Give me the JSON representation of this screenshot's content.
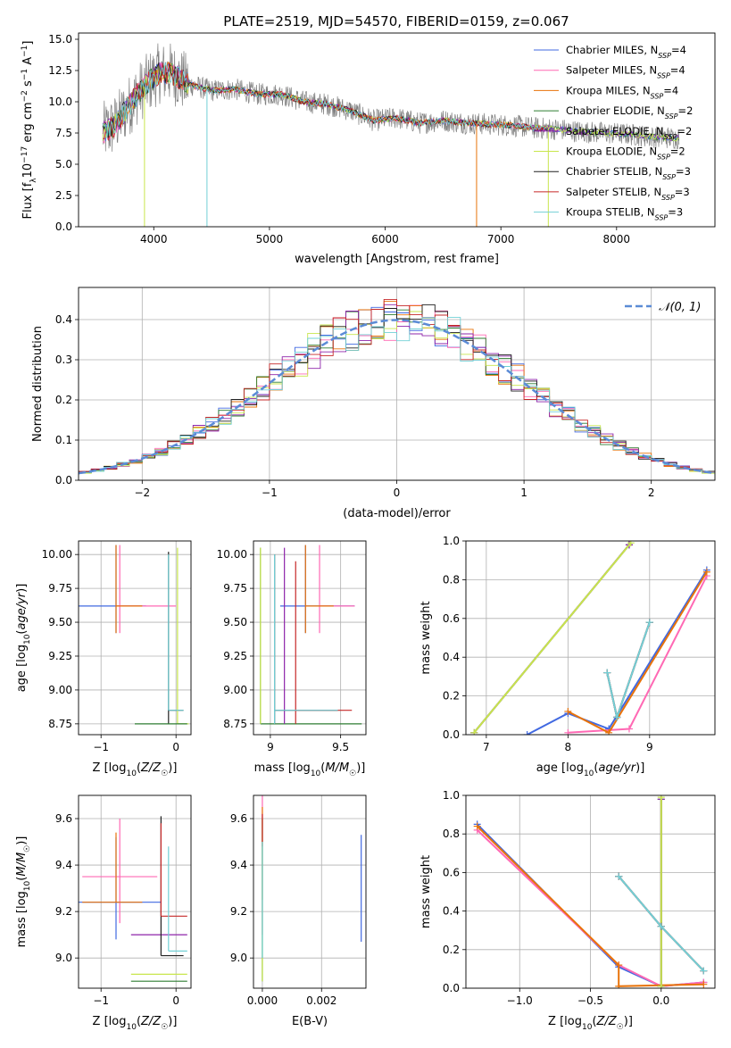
{
  "figure_title": "PLATE=2519, MJD=54570, FIBERID=0159, z=0.067",
  "series_colors": [
    "#4169e1",
    "#ff69b4",
    "#e8730a",
    "#2e7d32",
    "#8e24aa",
    "#c8e64c",
    "#212121",
    "#c62828",
    "#72d0d6"
  ],
  "chart_data": [
    {
      "id": "spectrum",
      "type": "line",
      "xlabel": "wavelength [Angstrom, rest frame]",
      "ylabel": "Flux [f_λ 10^-17 erg cm^-2 s^-1 A^-1]",
      "xlim": [
        3350,
        8850
      ],
      "ylim": [
        0,
        15.5
      ],
      "xticks": [
        4000,
        5000,
        6000,
        7000,
        8000
      ],
      "yticks": [
        0.0,
        2.5,
        5.0,
        7.5,
        10.0,
        12.5,
        15.0
      ],
      "legend_position": "top-right",
      "legend": [
        "Chabrier MILES, N_SSP=4",
        "Salpeter MILES, N_SSP=4",
        "Kroupa MILES, N_SSP=4",
        "Chabrier ELODIE, N_SSP=2",
        "Salpeter ELODIE, N_SSP=2",
        "Kroupa ELODIE, N_SSP=2",
        "Chabrier STELIB, N_SSP=3",
        "Salpeter STELIB, N_SSP=3",
        "Kroupa STELIB, N_SSP=3"
      ],
      "data_color": "#808080",
      "approx_continuum": {
        "x": [
          3550,
          3650,
          3750,
          3850,
          3950,
          4050,
          4150,
          4300,
          4500,
          4700,
          4900,
          5100,
          5300,
          5500,
          5700,
          5900,
          6100,
          6300,
          6500,
          6700,
          6900,
          7100,
          7300,
          7500,
          7700,
          7900,
          8100,
          8300,
          8500,
          8700
        ],
        "y": [
          7.5,
          8.0,
          9.2,
          10.5,
          11.5,
          12.3,
          12.3,
          11.4,
          10.9,
          11.0,
          10.6,
          10.6,
          10.0,
          9.8,
          9.3,
          8.5,
          8.7,
          8.3,
          8.5,
          8.3,
          8.2,
          8.1,
          7.9,
          7.8,
          7.6,
          7.5,
          7.4,
          7.2,
          7.1,
          7.0
        ]
      }
    },
    {
      "id": "residuals",
      "type": "step",
      "xlabel": "(data-model)/error",
      "ylabel": "Normed distribution",
      "xlim": [
        -2.5,
        2.5
      ],
      "ylim": [
        0,
        0.48
      ],
      "xticks": [
        -2,
        -1,
        0,
        1,
        2
      ],
      "yticks": [
        0.0,
        0.1,
        0.2,
        0.3,
        0.4
      ],
      "gaussian_label": "𝒩(0, 1)",
      "gaussian_color": "#5b8bd6",
      "grid": true
    },
    {
      "id": "age_vs_Z",
      "type": "errorbar",
      "xlabel": "Z [log10(Z/Z☉)]",
      "ylabel": "age [log10(age/yr)]",
      "xlim": [
        -1.3,
        0.2
      ],
      "ylim": [
        8.67,
        10.1
      ],
      "xticks": [
        -1,
        0
      ],
      "yticks": [
        8.75,
        9.0,
        9.25,
        9.5,
        9.75,
        10.0
      ],
      "points": [
        {
          "x": -0.8,
          "y": 9.62,
          "xerr": [
            0.5,
            0.4
          ],
          "yerr": [
            0.2,
            0.45
          ],
          "c": 0
        },
        {
          "x": -0.75,
          "y": 9.62,
          "xerr": [
            0.05,
            0.75
          ],
          "yerr": [
            0.2,
            0.45
          ],
          "c": 1
        },
        {
          "x": -0.8,
          "y": 9.62,
          "xerr": [
            0.0,
            0.35
          ],
          "yerr": [
            0.2,
            0.45
          ],
          "c": 2
        },
        {
          "x": -0.1,
          "y": 8.85,
          "xerr": [
            0.0,
            0.2
          ],
          "yerr": [
            0.1,
            1.17
          ],
          "c": 6
        },
        {
          "x": 0.02,
          "y": 8.75,
          "xerr": [
            0.0,
            0.15
          ],
          "yerr": [
            0.0,
            1.3
          ],
          "c": 5
        },
        {
          "x": -0.55,
          "y": 8.75,
          "xerr": [
            0.0,
            0.7
          ],
          "yerr": [
            0.0,
            0.0
          ],
          "c": 3
        },
        {
          "x": -0.1,
          "y": 8.85,
          "xerr": [
            0.0,
            0.2
          ],
          "yerr": [
            0.0,
            1.15
          ],
          "c": 8
        }
      ]
    },
    {
      "id": "age_vs_mass",
      "type": "errorbar",
      "xlabel": "mass [log10(M/M☉)]",
      "ylabel": "",
      "xlim": [
        8.88,
        9.68
      ],
      "ylim": [
        8.67,
        10.1
      ],
      "xticks": [
        9.0,
        9.5
      ],
      "yticks": [
        8.75,
        9.0,
        9.25,
        9.5,
        9.75,
        10.0
      ],
      "points": [
        {
          "x": 9.25,
          "y": 9.62,
          "xerr": [
            0.18,
            0.35
          ],
          "yerr": [
            0.2,
            0.45
          ],
          "c": 0
        },
        {
          "x": 9.35,
          "y": 9.62,
          "xerr": [
            0.0,
            0.25
          ],
          "yerr": [
            0.2,
            0.45
          ],
          "c": 1
        },
        {
          "x": 9.25,
          "y": 9.62,
          "xerr": [
            0.0,
            0.2
          ],
          "yerr": [
            0.2,
            0.45
          ],
          "c": 2
        },
        {
          "x": 8.93,
          "y": 8.75,
          "xerr": [
            0.0,
            0.72
          ],
          "yerr": [
            0.0,
            1.3
          ],
          "c": 3
        },
        {
          "x": 9.1,
          "y": 8.75,
          "xerr": [
            0.0,
            0.0
          ],
          "yerr": [
            0.0,
            1.3
          ],
          "c": 4
        },
        {
          "x": 8.93,
          "y": 8.75,
          "xerr": [
            0.0,
            0.0
          ],
          "yerr": [
            0.0,
            1.3
          ],
          "c": 5
        },
        {
          "x": 9.03,
          "y": 8.85,
          "xerr": [
            0.0,
            0.45
          ],
          "yerr": [
            0.1,
            1.15
          ],
          "c": 6
        },
        {
          "x": 9.18,
          "y": 8.85,
          "xerr": [
            0.0,
            0.4
          ],
          "yerr": [
            0.1,
            1.1
          ],
          "c": 7
        },
        {
          "x": 9.03,
          "y": 8.85,
          "xerr": [
            0.0,
            0.45
          ],
          "yerr": [
            0.1,
            1.15
          ],
          "c": 8
        }
      ]
    },
    {
      "id": "weight_vs_age",
      "type": "line",
      "xlabel": "age [log10(age/yr)]",
      "ylabel": "mass weight",
      "xlim": [
        6.75,
        9.8
      ],
      "ylim": [
        0,
        1.0
      ],
      "xticks": [
        7,
        8,
        9
      ],
      "yticks": [
        0.0,
        0.2,
        0.4,
        0.6,
        0.8,
        1.0
      ],
      "grid": true,
      "series": [
        {
          "c": 0,
          "x": [
            7.5,
            8.0,
            8.5,
            9.7
          ],
          "y": [
            0.0,
            0.11,
            0.03,
            0.85
          ]
        },
        {
          "c": 1,
          "x": [
            8.0,
            8.75,
            9.7
          ],
          "y": [
            0.01,
            0.03,
            0.82
          ]
        },
        {
          "c": 2,
          "x": [
            8.0,
            8.5,
            9.7
          ],
          "y": [
            0.12,
            0.01,
            0.84
          ]
        },
        {
          "c": 3,
          "x": [
            6.85,
            8.75
          ],
          "y": [
            0.01,
            0.98
          ]
        },
        {
          "c": 4,
          "x": [
            6.85,
            8.75
          ],
          "y": [
            0.01,
            0.98
          ]
        },
        {
          "c": 5,
          "x": [
            6.85,
            8.77
          ],
          "y": [
            0.01,
            0.99
          ]
        },
        {
          "c": 6,
          "x": [
            8.48,
            8.6,
            9.0
          ],
          "y": [
            0.32,
            0.09,
            0.58
          ]
        },
        {
          "c": 7,
          "x": [
            8.48,
            8.6,
            9.0
          ],
          "y": [
            0.32,
            0.09,
            0.58
          ]
        },
        {
          "c": 8,
          "x": [
            8.48,
            8.6,
            9.0
          ],
          "y": [
            0.32,
            0.09,
            0.58
          ]
        }
      ]
    },
    {
      "id": "mass_vs_Z",
      "type": "errorbar",
      "xlabel": "Z [log10(Z/Z☉)]",
      "ylabel": "mass [log10(M/M☉)]",
      "xlim": [
        -1.3,
        0.2
      ],
      "ylim": [
        8.87,
        9.7
      ],
      "xticks": [
        -1,
        0
      ],
      "yticks": [
        9.0,
        9.2,
        9.4,
        9.6
      ],
      "points": [
        {
          "x": -0.8,
          "y": 9.24,
          "xerr": [
            0.5,
            0.6
          ],
          "yerr": [
            0.16,
            0.28
          ],
          "c": 0
        },
        {
          "x": -0.75,
          "y": 9.35,
          "xerr": [
            0.5,
            0.5
          ],
          "yerr": [
            0.2,
            0.25
          ],
          "c": 1
        },
        {
          "x": -0.8,
          "y": 9.24,
          "xerr": [
            0.45,
            0.35
          ],
          "yerr": [
            0.0,
            0.3
          ],
          "c": 2
        },
        {
          "x": -0.6,
          "y": 8.9,
          "xerr": [
            0.0,
            0.75
          ],
          "yerr": [
            0.0,
            0.0
          ],
          "c": 3
        },
        {
          "x": -0.6,
          "y": 9.1,
          "xerr": [
            0.0,
            0.75
          ],
          "yerr": [
            0.0,
            0.0
          ],
          "c": 4
        },
        {
          "x": -0.6,
          "y": 8.93,
          "xerr": [
            0.0,
            0.75
          ],
          "yerr": [
            0.0,
            0.0
          ],
          "c": 5
        },
        {
          "x": -0.2,
          "y": 9.01,
          "xerr": [
            0.0,
            0.3
          ],
          "yerr": [
            0.0,
            0.6
          ],
          "c": 6
        },
        {
          "x": -0.2,
          "y": 9.18,
          "xerr": [
            0.0,
            0.35
          ],
          "yerr": [
            0.0,
            0.4
          ],
          "c": 7
        },
        {
          "x": -0.1,
          "y": 9.03,
          "xerr": [
            0.0,
            0.25
          ],
          "yerr": [
            0.0,
            0.45
          ],
          "c": 8
        }
      ]
    },
    {
      "id": "mass_vs_ebv",
      "type": "errorbar",
      "xlabel": "E(B-V)",
      "ylabel": "",
      "xlim": [
        -0.0003,
        0.0035
      ],
      "ylim": [
        8.87,
        9.7
      ],
      "xticks": [
        0.0,
        0.002
      ],
      "xticklabels": [
        "0.000",
        "0.002"
      ],
      "yticks": [
        9.0,
        9.2,
        9.4,
        9.6
      ],
      "points": [
        {
          "x": 0.00334,
          "y": 9.3,
          "xerr": [
            0.0,
            0.0
          ],
          "yerr": [
            0.23,
            0.23
          ],
          "c": 0
        },
        {
          "x": 0.0,
          "y": 9.4,
          "xerr": [
            0.0,
            0.0
          ],
          "yerr": [
            0.3,
            0.3
          ],
          "c": 1
        },
        {
          "x": 0.0,
          "y": 9.45,
          "xerr": [
            0.0,
            0.0
          ],
          "yerr": [
            0.2,
            0.2
          ],
          "c": 2
        },
        {
          "x": 0.0,
          "y": 9.1,
          "xerr": [
            0.0,
            0.0
          ],
          "yerr": [
            0.2,
            0.5
          ],
          "c": 3
        },
        {
          "x": 0.0,
          "y": 9.3,
          "xerr": [
            0.0,
            0.0
          ],
          "yerr": [
            0.4,
            0.3
          ],
          "c": 5
        },
        {
          "x": 0.0,
          "y": 9.55,
          "xerr": [
            0.0,
            0.0
          ],
          "yerr": [
            0.07,
            0.07
          ],
          "c": 7
        },
        {
          "x": 0.0,
          "y": 9.25,
          "xerr": [
            0.0,
            0.0
          ],
          "yerr": [
            0.25,
            0.25
          ],
          "c": 8
        }
      ]
    },
    {
      "id": "weight_vs_Z",
      "type": "line",
      "xlabel": "Z [log10(Z/Z☉)]",
      "ylabel": "mass weight",
      "xlim": [
        -1.38,
        0.38
      ],
      "ylim": [
        0,
        1.0
      ],
      "xticks": [
        -1.0,
        -0.5,
        0.0
      ],
      "xticklabels": [
        "−1.0",
        "−0.5",
        "0.0"
      ],
      "yticks": [
        0.0,
        0.2,
        0.4,
        0.6,
        0.8,
        1.0
      ],
      "grid": true,
      "series": [
        {
          "c": 0,
          "x": [
            -1.3,
            -0.3,
            0.0,
            0.3
          ],
          "y": [
            0.85,
            0.11,
            0.01,
            0.03
          ]
        },
        {
          "c": 1,
          "x": [
            -1.3,
            -0.3,
            0.0,
            0.3
          ],
          "y": [
            0.82,
            0.12,
            0.01,
            0.03
          ]
        },
        {
          "c": 2,
          "x": [
            -1.3,
            -0.3,
            -0.3,
            0.3
          ],
          "y": [
            0.84,
            0.12,
            0.01,
            0.02
          ]
        },
        {
          "c": 3,
          "x": [
            0.0,
            0.0
          ],
          "y": [
            0.01,
            0.98
          ]
        },
        {
          "c": 4,
          "x": [
            0.0,
            0.0
          ],
          "y": [
            0.01,
            0.98
          ]
        },
        {
          "c": 5,
          "x": [
            0.0,
            0.0
          ],
          "y": [
            0.01,
            0.99
          ]
        },
        {
          "c": 6,
          "x": [
            -0.3,
            0.0,
            0.3
          ],
          "y": [
            0.58,
            0.32,
            0.09
          ]
        },
        {
          "c": 7,
          "x": [
            -0.3,
            0.0,
            0.3
          ],
          "y": [
            0.58,
            0.32,
            0.09
          ]
        },
        {
          "c": 8,
          "x": [
            -0.3,
            0.0,
            0.3
          ],
          "y": [
            0.58,
            0.32,
            0.09
          ]
        }
      ]
    }
  ]
}
